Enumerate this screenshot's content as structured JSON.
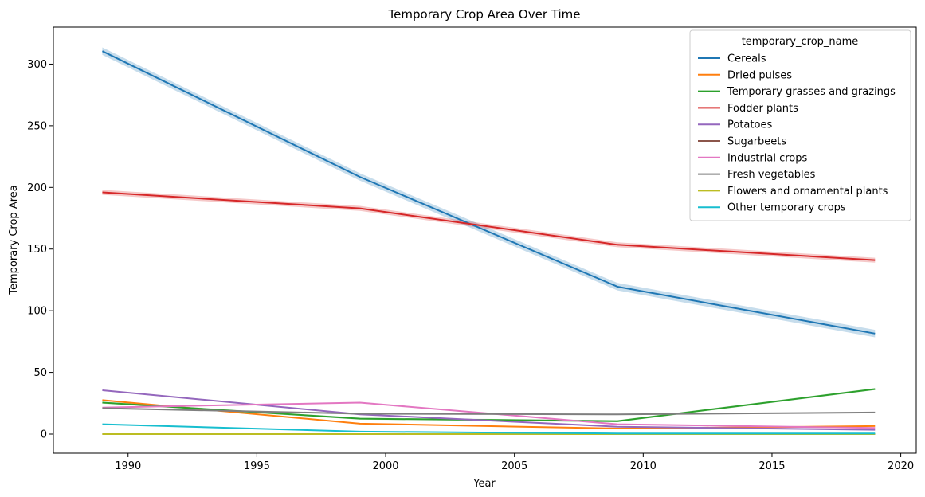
{
  "chart_data": {
    "type": "line",
    "title": "Temporary Crop Area Over Time",
    "xlabel": "Year",
    "ylabel": "Temporary Crop Area",
    "xlim": [
      1987.1,
      2020.6
    ],
    "ylim": [
      -15.5,
      330
    ],
    "xticks": [
      1990,
      1995,
      2000,
      2005,
      2010,
      2015,
      2020
    ],
    "yticks": [
      0,
      50,
      100,
      150,
      200,
      250,
      300
    ],
    "x": [
      1989,
      1999,
      2009,
      2019
    ],
    "grid": false,
    "legend": {
      "title": "temporary_crop_name",
      "placement": "top-right"
    },
    "series": [
      {
        "name": "Cereals",
        "color": "#1f77b4",
        "values": [
          310.5,
          208.5,
          119.5,
          81.5
        ],
        "band": 3
      },
      {
        "name": "Dried pulses",
        "color": "#ff7f0e",
        "values": [
          27.5,
          8.5,
          4.5,
          6.5
        ],
        "band": 0
      },
      {
        "name": "Temporary grasses and grazings",
        "color": "#2ca02c",
        "values": [
          25.5,
          12.5,
          10.5,
          36.5
        ],
        "band": 0.8
      },
      {
        "name": "Fodder plants",
        "color": "#d62728",
        "values": [
          196,
          183,
          153.5,
          141
        ],
        "band": 2
      },
      {
        "name": "Potatoes",
        "color": "#9467bd",
        "values": [
          35.5,
          16,
          6,
          3.5
        ],
        "band": 0
      },
      {
        "name": "Sugarbeets",
        "color": "#8c564b",
        "values": [
          0,
          0,
          0,
          0
        ],
        "band": 0
      },
      {
        "name": "Industrial crops",
        "color": "#e377c2",
        "values": [
          21.5,
          25.5,
          8,
          5
        ],
        "band": 0
      },
      {
        "name": "Fresh vegetables",
        "color": "#7f7f7f",
        "values": [
          21,
          16.5,
          16,
          17.5
        ],
        "band": 0
      },
      {
        "name": "Flowers and ornamental plants",
        "color": "#bcbd22",
        "values": [
          0,
          0,
          0,
          0
        ],
        "band": 0
      },
      {
        "name": "Other temporary crops",
        "color": "#17becf",
        "values": [
          8,
          2,
          0.5,
          0.5
        ],
        "band": 0
      }
    ]
  }
}
